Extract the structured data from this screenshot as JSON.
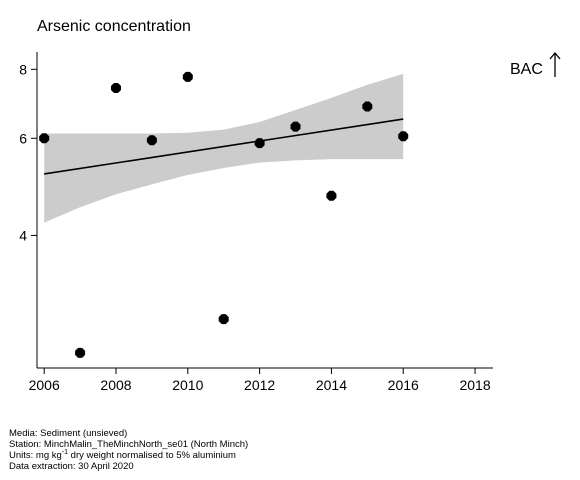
{
  "title": "Arsenic concentration",
  "assessment_label": "BAC",
  "arrow_icon": "up-arrow-icon",
  "footer": {
    "media": "Media: Sediment (unsieved)",
    "station": "Station: MinchMalin_TheMinchNorth_se01 (North Minch)",
    "units_prefix": "Units:  mg kg",
    "units_sup": "-1",
    "units_suffix": " dry weight normalised to 5% aluminium",
    "extraction": "Data extraction: 30 April 2020"
  },
  "chart_data": {
    "type": "scatter",
    "title": "Arsenic concentration",
    "xlabel": "",
    "ylabel": "",
    "xlim": [
      2005.8,
      2018.5
    ],
    "ylim": [
      2.3,
      8.6
    ],
    "y_scale": "log",
    "xticks": [
      2006,
      2008,
      2010,
      2012,
      2014,
      2016,
      2018
    ],
    "yticks": [
      4,
      6,
      8
    ],
    "grid": false,
    "points": [
      {
        "x": 2006,
        "y": 6.0
      },
      {
        "x": 2007,
        "y": 2.45
      },
      {
        "x": 2008,
        "y": 7.4
      },
      {
        "x": 2009,
        "y": 5.95
      },
      {
        "x": 2010,
        "y": 7.75
      },
      {
        "x": 2011,
        "y": 2.82
      },
      {
        "x": 2012,
        "y": 5.88
      },
      {
        "x": 2013,
        "y": 6.3
      },
      {
        "x": 2014,
        "y": 4.72
      },
      {
        "x": 2015,
        "y": 6.85
      },
      {
        "x": 2016,
        "y": 6.05
      }
    ],
    "trend": {
      "x": [
        2006,
        2016
      ],
      "y": [
        5.17,
        6.5
      ]
    },
    "confidence_band": {
      "x": [
        2006,
        2007,
        2008,
        2009,
        2010,
        2011,
        2012,
        2013,
        2014,
        2015,
        2016
      ],
      "lower": [
        4.22,
        4.5,
        4.75,
        4.95,
        5.15,
        5.3,
        5.42,
        5.47,
        5.5,
        5.5,
        5.5
      ],
      "upper": [
        6.12,
        6.12,
        6.12,
        6.12,
        6.14,
        6.22,
        6.42,
        6.75,
        7.1,
        7.5,
        7.85
      ]
    },
    "colors": {
      "points": "#000000",
      "trend": "#000000",
      "band": "#cccccc",
      "axis": "#000000"
    }
  }
}
